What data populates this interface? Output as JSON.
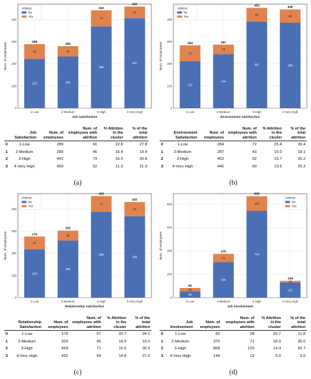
{
  "panels": [
    {
      "caption": "(a)",
      "chart_data": {
        "type": "bar",
        "stacked": true,
        "categories": [
          "1-Low",
          "2-Medium",
          "3-High",
          "4-Very High"
        ],
        "series": [
          {
            "name": "No",
            "values": [
              223,
              234,
              369,
              407
            ],
            "color": "#4a6fb5"
          },
          {
            "name": "Yes",
            "values": [
              66,
              46,
              73,
              52
            ],
            "color": "#e0834f"
          }
        ],
        "totals": [
          289,
          280,
          442,
          459
        ],
        "xlabel": "Job satisfaction",
        "ylabel": "Num. of employees",
        "ylim": [
          0,
          470
        ],
        "yticks": [
          0,
          100,
          200,
          300,
          400
        ],
        "legend_title": "Attrition",
        "legend_position": "top-left",
        "grid": true
      },
      "table": {
        "headers": [
          "Job Satisfaction",
          "Num. of employees",
          "Num. of employees with attrition",
          "% Attrition in the cluster",
          "% of the total attrition"
        ],
        "rows": [
          [
            "0",
            "1-Low",
            "289",
            "66",
            "22.8",
            "27.8"
          ],
          [
            "1",
            "2-Medium",
            "280",
            "46",
            "16.4",
            "19.4"
          ],
          [
            "2",
            "3-High",
            "442",
            "73",
            "16.5",
            "30.8"
          ],
          [
            "3",
            "4-Very High",
            "459",
            "52",
            "11.3",
            "21.9"
          ]
        ]
      }
    },
    {
      "caption": "(b)",
      "chart_data": {
        "type": "bar",
        "stacked": true,
        "categories": [
          "1-Low",
          "2-Medium",
          "3-High",
          "4-Very High"
        ],
        "series": [
          {
            "name": "No",
            "values": [
              212,
              244,
              391,
              386
            ],
            "color": "#4a6fb5"
          },
          {
            "name": "Yes",
            "values": [
              72,
              43,
              62,
              60
            ],
            "color": "#e0834f"
          }
        ],
        "totals": [
          284,
          287,
          453,
          446
        ],
        "xlabel": "Environment satisfaction",
        "ylabel": "Num. of employees",
        "ylim": [
          0,
          470
        ],
        "yticks": [
          0,
          100,
          200,
          300,
          400
        ],
        "legend_title": "Attrition",
        "legend_position": "top-left",
        "grid": true
      },
      "table": {
        "headers": [
          "Environment Satisfaction",
          "Num. of employees",
          "Num. of employees with attrition",
          "% Attrition in the cluster",
          "% of the total attrition"
        ],
        "rows": [
          [
            "0",
            "1-Low",
            "284",
            "72",
            "25.4",
            "30.4"
          ],
          [
            "1",
            "2-Medium",
            "287",
            "43",
            "15.0",
            "18.1"
          ],
          [
            "2",
            "3-High",
            "453",
            "62",
            "13.7",
            "26.2"
          ],
          [
            "3",
            "4-Very High",
            "446",
            "60",
            "13.5",
            "25.3"
          ]
        ]
      }
    },
    {
      "caption": "(c)",
      "chart_data": {
        "type": "bar",
        "stacked": true,
        "categories": [
          "1-Low",
          "2-Medium",
          "3-High",
          "4-Very High"
        ],
        "series": [
          {
            "name": "No",
            "values": [
              219,
              258,
              388,
              368
            ],
            "color": "#4a6fb5"
          },
          {
            "name": "Yes",
            "values": [
              57,
              45,
              71,
              64
            ],
            "color": "#e0834f"
          }
        ],
        "totals": [
          276,
          303,
          459,
          432
        ],
        "xlabel": "Relationship satisfaction",
        "ylabel": "Num. of employees",
        "ylim": [
          0,
          470
        ],
        "yticks": [
          0,
          100,
          200,
          300,
          400
        ],
        "legend_title": "Attrition",
        "legend_position": "top-left",
        "grid": true
      },
      "table": {
        "headers": [
          "Relationship Satisfaction",
          "Num. of employees",
          "Num. of employees with attrition",
          "% Attrition in the cluster",
          "% of the total attrition"
        ],
        "rows": [
          [
            "0",
            "1-Low",
            "276",
            "57",
            "20.7",
            "24.1"
          ],
          [
            "1",
            "2-Medium",
            "303",
            "45",
            "14.9",
            "19.0"
          ],
          [
            "2",
            "3-High",
            "459",
            "71",
            "15.5",
            "30.0"
          ],
          [
            "3",
            "4-Very High",
            "432",
            "64",
            "14.8",
            "27.0"
          ]
        ]
      }
    },
    {
      "caption": "(d)",
      "chart_data": {
        "type": "bar",
        "stacked": true,
        "categories": [
          "1-Low",
          "2-Medium",
          "3-High",
          "4-Very High"
        ],
        "series": [
          {
            "name": "No",
            "values": [
              55,
              304,
              743,
              131
            ],
            "color": "#4a6fb5"
          },
          {
            "name": "Yes",
            "values": [
              28,
              71,
              125,
              13
            ],
            "color": "#e0834f"
          }
        ],
        "totals": [
          83,
          375,
          868,
          144
        ],
        "xlabel": "Job involvement",
        "ylabel": "Num. of employees",
        "ylim": [
          0,
          890
        ],
        "yticks": [
          0,
          200,
          400,
          600,
          800
        ],
        "legend_title": "Attrition",
        "legend_position": "top-right",
        "grid": true
      },
      "table": {
        "headers": [
          "Job Involvement",
          "Num. of employees",
          "Num. of employees with attrition",
          "% Attrition in the cluster",
          "% of the total attrition"
        ],
        "rows": [
          [
            "0",
            "1-Low",
            "83",
            "28",
            "33.7",
            "11.8"
          ],
          [
            "1",
            "2-Medium",
            "375",
            "71",
            "18.9",
            "30.0"
          ],
          [
            "2",
            "3-High",
            "868",
            "125",
            "14.4",
            "52.7"
          ],
          [
            "3",
            "4-Very High",
            "144",
            "13",
            "9.0",
            "5.5"
          ]
        ]
      }
    }
  ]
}
